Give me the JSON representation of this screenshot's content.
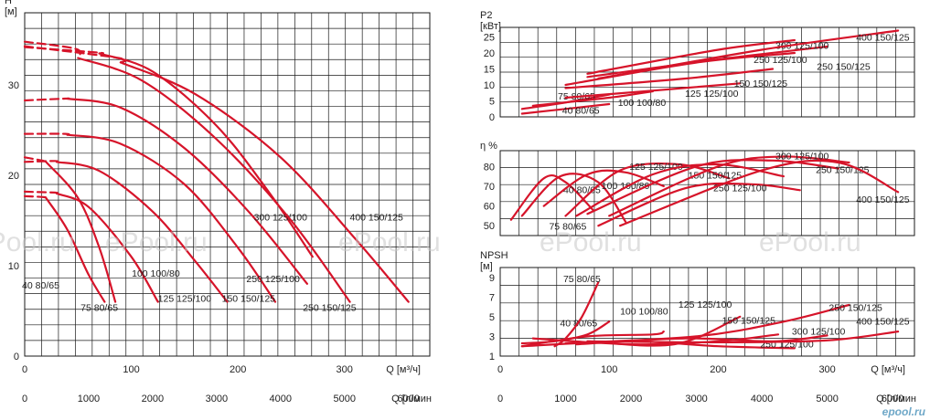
{
  "watermark": "ePool.ru",
  "brand": "epool.ru",
  "accent_color": "#d6142a",
  "chart_data": [
    {
      "type": "line",
      "name": "head",
      "ylabel": "H",
      "yunit": "[м]",
      "xlabel": "Q [м³/ч]",
      "x2label": "Q [л/мин",
      "xlim": [
        0,
        380
      ],
      "ylim": [
        0,
        38
      ],
      "xticks": [
        0,
        100,
        200,
        300
      ],
      "yticks": [
        0,
        10,
        20,
        30
      ],
      "x2ticks": [
        0,
        1000,
        2000,
        3000,
        4000,
        5000,
        6000
      ],
      "grid": true,
      "series": [
        {
          "name": "40 80/65",
          "x": [
            20,
            40,
            60,
            75
          ],
          "y": [
            17.5,
            14,
            9,
            6
          ],
          "dash": [
            [
              0,
              17.7
            ],
            [
              18,
              17.6
            ]
          ],
          "label_at": [
            15,
            7.5
          ]
        },
        {
          "name": "75 80/65",
          "x": [
            20,
            50,
            70,
            85
          ],
          "y": [
            21.5,
            17.5,
            12,
            6
          ],
          "dash": [
            [
              0,
              22
            ],
            [
              18,
              21.6
            ]
          ],
          "label_at": [
            70,
            5
          ]
        },
        {
          "name": "100 100/80",
          "x": [
            30,
            60,
            100,
            125
          ],
          "y": [
            18,
            16.5,
            11,
            6
          ],
          "dash": [
            [
              0,
              18.2
            ],
            [
              28,
              18.1
            ]
          ],
          "label_at": [
            123,
            8.8
          ]
        },
        {
          "name": "125 125/100",
          "x": [
            30,
            70,
            120,
            160,
            190
          ],
          "y": [
            21.5,
            20.5,
            16,
            10.5,
            6
          ],
          "dash": [
            [
              0,
              21.5
            ],
            [
              28,
              21.6
            ]
          ],
          "label_at": [
            150,
            6
          ]
        },
        {
          "name": "150 150/125",
          "x": [
            40,
            90,
            150,
            200,
            235
          ],
          "y": [
            24.5,
            23.5,
            19,
            12,
            6
          ],
          "dash": [
            [
              0,
              24.6
            ],
            [
              38,
              24.6
            ]
          ],
          "label_at": [
            210,
            6
          ]
        },
        {
          "name": "250 125/100",
          "x": [
            40,
            90,
            150,
            210,
            265
          ],
          "y": [
            28.5,
            27.5,
            23,
            16,
            8
          ],
          "dash": [
            [
              0,
              28.3
            ],
            [
              38,
              28.5
            ]
          ],
          "label_at": [
            233,
            8.2
          ]
        },
        {
          "name": "300 125/100",
          "x": [
            70,
            120,
            180,
            230,
            270
          ],
          "y": [
            33.5,
            31.5,
            25.5,
            18,
            11
          ],
          "dash": [
            [
              0,
              34.2
            ],
            [
              68,
              33.6
            ]
          ],
          "label_at": [
            240,
            15
          ]
        },
        {
          "name": "250 150/125",
          "x": [
            50,
            110,
            180,
            250,
            305
          ],
          "y": [
            33,
            30.5,
            24,
            15,
            6
          ],
          "dash": [
            [
              0,
              34.8
            ],
            [
              48,
              34
            ]
          ],
          "label_at": [
            286,
            5
          ]
        },
        {
          "name": "400 150/125",
          "x": [
            90,
            160,
            240,
            310,
            360
          ],
          "y": [
            32.5,
            29,
            22,
            13,
            6
          ],
          "dash": [
            [
              0,
              34.3
            ],
            [
              88,
              33
            ]
          ],
          "label_at": [
            330,
            15
          ]
        }
      ]
    },
    {
      "type": "line",
      "name": "power",
      "ylabel": "P2",
      "yunit": "[кВт]",
      "xlim": [
        0,
        380
      ],
      "ylim": [
        0,
        28
      ],
      "yticks": [
        0,
        5,
        10,
        15,
        20,
        25
      ],
      "grid": true,
      "series": [
        {
          "name": "40 80/65",
          "x": [
            20,
            60,
            100
          ],
          "y": [
            1,
            2.5,
            4
          ],
          "label_at": [
            74,
            1
          ]
        },
        {
          "name": "75 80/65",
          "x": [
            20,
            60,
            100
          ],
          "y": [
            2.5,
            4.5,
            7
          ],
          "label_at": [
            70,
            5.5
          ]
        },
        {
          "name": "100 100/80",
          "x": [
            30,
            100,
            140
          ],
          "y": [
            3.5,
            6,
            8
          ],
          "label_at": [
            130,
            3.5
          ]
        },
        {
          "name": "125 125/100",
          "x": [
            60,
            150,
            220
          ],
          "y": [
            6,
            8.5,
            10.5
          ],
          "label_at": [
            194,
            6.3
          ]
        },
        {
          "name": "150 150/125",
          "x": [
            60,
            170,
            250
          ],
          "y": [
            9,
            12,
            15
          ],
          "label_at": [
            239,
            9.5
          ]
        },
        {
          "name": "250 125/100",
          "x": [
            60,
            180,
            270
          ],
          "y": [
            10,
            17,
            20
          ],
          "label_at": [
            257,
            16.8
          ]
        },
        {
          "name": "250 150/125",
          "x": [
            80,
            200,
            300
          ],
          "y": [
            12.5,
            18,
            22
          ],
          "label_at": [
            315,
            14.7
          ]
        },
        {
          "name": "300 125/100",
          "x": [
            80,
            200,
            270
          ],
          "y": [
            13.5,
            21,
            24
          ],
          "label_at": [
            277,
            21.3
          ]
        },
        {
          "name": "400 150/125",
          "x": [
            90,
            240,
            365
          ],
          "y": [
            12,
            21,
            27
          ],
          "label_at": [
            351,
            23.8
          ]
        }
      ]
    },
    {
      "type": "line",
      "name": "efficiency",
      "ylabel": "η %",
      "xlim": [
        0,
        380
      ],
      "ylim": [
        45,
        88
      ],
      "yticks": [
        50,
        60,
        70,
        80
      ],
      "grid": true,
      "series": [
        {
          "name": "40 80/65",
          "x": [
            10,
            40,
            60,
            85
          ],
          "y": [
            53,
            74,
            72,
            58
          ],
          "label_at": [
            75,
            66.5
          ]
        },
        {
          "name": "75 80/65",
          "x": [
            20,
            55,
            90,
            115
          ],
          "y": [
            55,
            75,
            72,
            52
          ],
          "label_at": [
            62,
            48
          ]
        },
        {
          "name": "100 100/80",
          "x": [
            40,
            80,
            115,
            150
          ],
          "y": [
            60,
            76,
            77,
            70
          ],
          "label_at": [
            115,
            68.5
          ]
        },
        {
          "name": "125 125/100",
          "x": [
            60,
            110,
            165,
            210
          ],
          "y": [
            55,
            78,
            81,
            74
          ],
          "label_at": [
            143,
            78.3
          ]
        },
        {
          "name": "150 150/125",
          "x": [
            70,
            140,
            200,
            260
          ],
          "y": [
            55,
            76,
            81,
            75
          ],
          "label_at": [
            197,
            74
          ]
        },
        {
          "name": "250 125/100",
          "x": [
            90,
            170,
            230,
            275
          ],
          "y": [
            50,
            69,
            71,
            68
          ],
          "label_at": [
            220,
            67.5
          ]
        },
        {
          "name": "250 150/125",
          "x": [
            80,
            180,
            250,
            310
          ],
          "y": [
            56,
            80,
            83,
            79
          ],
          "label_at": [
            314,
            76.7
          ]
        },
        {
          "name": "300 125/100",
          "x": [
            100,
            200,
            260,
            320
          ],
          "y": [
            55,
            80,
            85,
            82
          ],
          "label_at": [
            277,
            83.5
          ]
        },
        {
          "name": "400 150/125",
          "x": [
            110,
            240,
            310,
            365
          ],
          "y": [
            50,
            78,
            82,
            67
          ],
          "label_at": [
            351,
            61.7
          ]
        }
      ]
    },
    {
      "type": "line",
      "name": "npsh",
      "ylabel": "NPSH",
      "yunit": "[м]",
      "xlabel": "Q [м³/ч]",
      "x2label": "Q [л/мин",
      "xlim": [
        0,
        380
      ],
      "ylim": [
        1,
        10
      ],
      "xticks": [
        0,
        100,
        200,
        300
      ],
      "yticks": [
        1,
        3,
        5,
        7,
        9
      ],
      "x2ticks": [
        0,
        1000,
        2000,
        3000,
        4000,
        5000,
        6000
      ],
      "grid": true,
      "series": [
        {
          "name": "40 80/65",
          "x": [
            20,
            50,
            80,
            100
          ],
          "y": [
            2.3,
            2.5,
            3.2,
            4.5
          ],
          "label_at": [
            72,
            4
          ]
        },
        {
          "name": "75 80/65",
          "x": [
            50,
            60,
            75,
            90
          ],
          "y": [
            2,
            2.8,
            5,
            8.5
          ],
          "label_at": [
            75,
            8.5
          ]
        },
        {
          "name": "100 100/80",
          "x": [
            20,
            80,
            140,
            150
          ],
          "y": [
            2,
            3,
            3.2,
            3.5
          ],
          "label_at": [
            132,
            5.2
          ]
        },
        {
          "name": "125 125/100",
          "x": [
            80,
            160,
            220
          ],
          "y": [
            2.5,
            2.2,
            5
          ],
          "label_at": [
            188,
            5.9
          ]
        },
        {
          "name": "150 150/125",
          "x": [
            30,
            120,
            200,
            255
          ],
          "y": [
            2.8,
            2.2,
            2.5,
            3.2
          ],
          "label_at": [
            228,
            4.3
          ]
        },
        {
          "name": "250 125/100",
          "x": [
            20,
            120,
            200,
            270
          ],
          "y": [
            2,
            2.5,
            2,
            1.8
          ],
          "label_at": [
            263,
            1.9
          ]
        },
        {
          "name": "250 150/125",
          "x": [
            60,
            180,
            260,
            320
          ],
          "y": [
            2.3,
            3,
            4.5,
            6.2
          ],
          "label_at": [
            326,
            5.6
          ]
        },
        {
          "name": "300 125/100",
          "x": [
            70,
            170,
            250,
            300
          ],
          "y": [
            2.2,
            2.8,
            2.5,
            3.1
          ],
          "label_at": [
            292,
            3.2
          ]
        },
        {
          "name": "400 150/125",
          "x": [
            80,
            200,
            300,
            365
          ],
          "y": [
            2.5,
            2.4,
            2.6,
            3.5
          ],
          "label_at": [
            351,
            4.2
          ]
        }
      ]
    }
  ]
}
